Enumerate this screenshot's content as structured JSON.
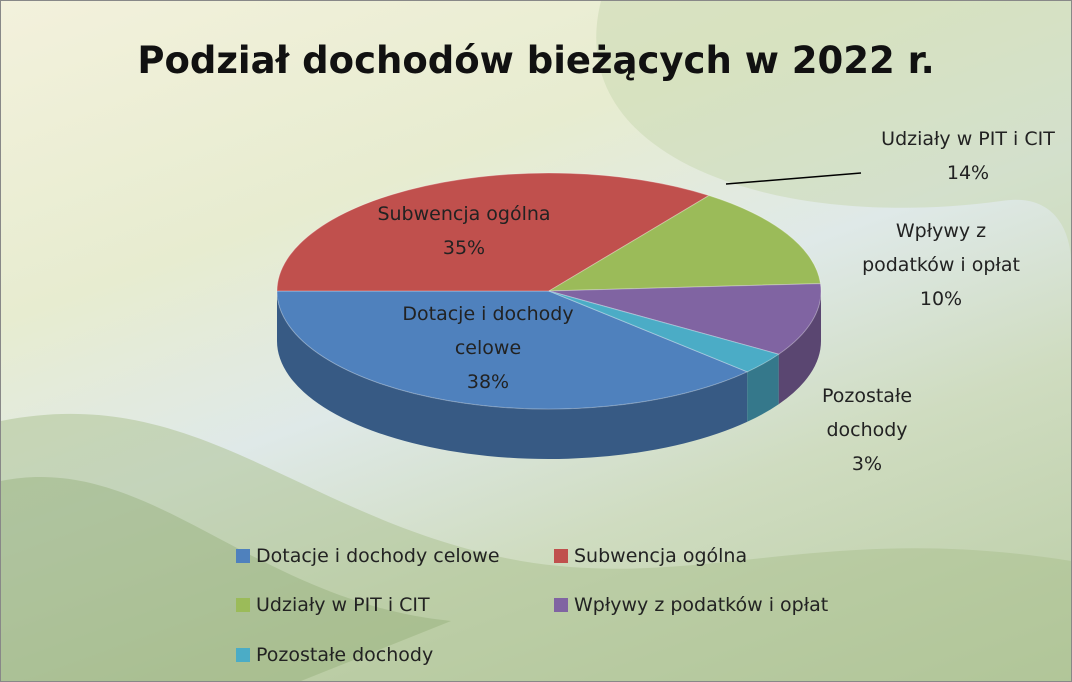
{
  "chart_data": {
    "type": "pie",
    "title": "Podział dochodów bieżących w 2022 r.",
    "categories": [
      "Dotacje i dochody celowe",
      "Subwencja ogólna",
      "Udziały w PIT i CIT",
      "Wpływy z podatków i opłat",
      "Pozostałe dochody"
    ],
    "values": [
      38,
      35,
      14,
      10,
      3
    ],
    "value_labels": [
      "38%",
      "35%",
      "14%",
      "10%",
      "3%"
    ],
    "colors": [
      "#4f81bd",
      "#c0504d",
      "#9bbb59",
      "#8064a2",
      "#4bacc6"
    ],
    "legend": "bottom"
  }
}
